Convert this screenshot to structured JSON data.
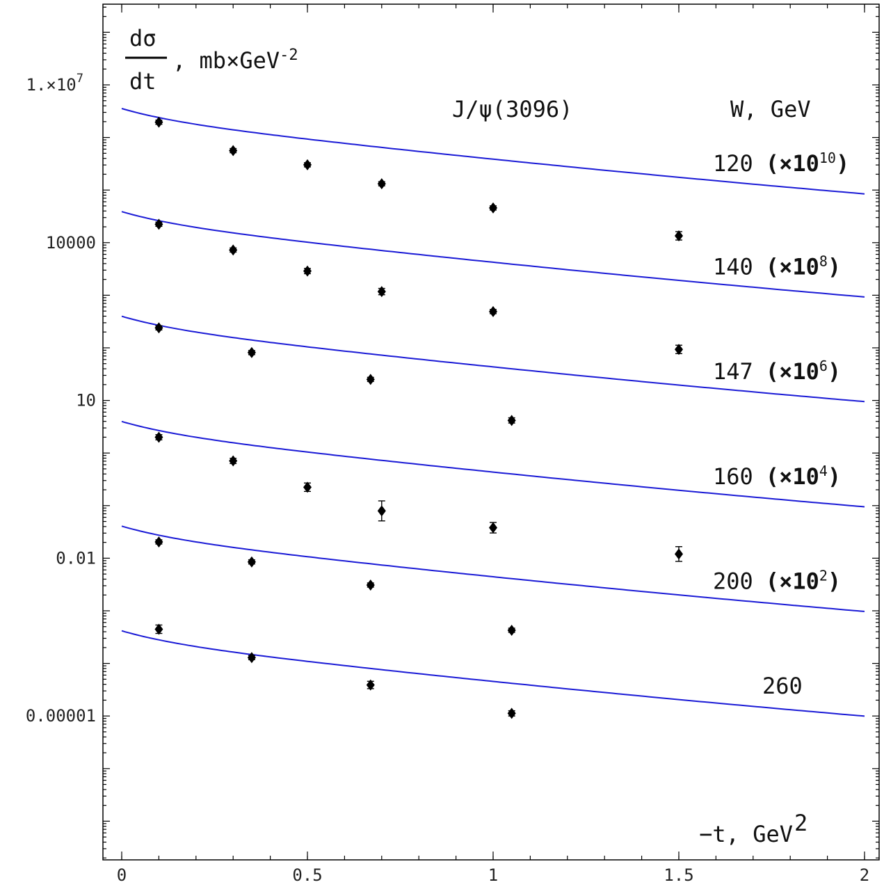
{
  "chart_data": {
    "type": "scatter",
    "title": "J/ψ(3096)",
    "ylabel": {
      "numerator": "dσ",
      "denominator": "dt",
      "units": "mb×GeV",
      "units_exp": "-2"
    },
    "xlabel": {
      "text": "−t, GeV",
      "exp": "2"
    },
    "legend_title": "W, GeV",
    "y_scale": "log",
    "xlim": [
      -0.05,
      2.05
    ],
    "ylim_log10": [
      -9.6,
      8.7
    ],
    "x_ticks": [
      {
        "v": 0,
        "label": "0"
      },
      {
        "v": 0.5,
        "label": "0.5"
      },
      {
        "v": 1,
        "label": "1"
      },
      {
        "v": 1.5,
        "label": "1.5"
      },
      {
        "v": 2,
        "label": "2"
      }
    ],
    "y_ticks": [
      {
        "log10": 7,
        "label": "1.×10",
        "exp": "7"
      },
      {
        "log10": 4,
        "label": "10000",
        "exp": ""
      },
      {
        "log10": 1,
        "label": "10",
        "exp": ""
      },
      {
        "log10": -2,
        "label": "0.01",
        "exp": ""
      },
      {
        "log10": -5,
        "label": "0.00001",
        "exp": ""
      }
    ],
    "series": [
      {
        "name": "120",
        "scale": "(×10",
        "scale_exp": "10",
        "scale_close": ")",
        "curve_log10": {
          "a": 6.55,
          "b": -0.84,
          "c": -0.73,
          "d": 0.06
        },
        "points": [
          {
            "x": 0.1,
            "log10_y": 6.29,
            "err_lo": 0.04,
            "err_hi": 0.04
          },
          {
            "x": 0.3,
            "log10_y": 5.75,
            "err_lo": 0.04,
            "err_hi": 0.04
          },
          {
            "x": 0.5,
            "log10_y": 5.48,
            "err_lo": 0.04,
            "err_hi": 0.04
          },
          {
            "x": 0.7,
            "log10_y": 5.12,
            "err_lo": 0.04,
            "err_hi": 0.04
          },
          {
            "x": 1.0,
            "log10_y": 4.66,
            "err_lo": 0.04,
            "err_hi": 0.04
          },
          {
            "x": 1.5,
            "log10_y": 4.13,
            "err_lo": 0.08,
            "err_hi": 0.08
          }
        ]
      },
      {
        "name": "140",
        "scale": "(×10",
        "scale_exp": "8",
        "scale_close": ")",
        "curve_log10": {
          "a": 4.59,
          "b": -0.84,
          "c": -0.73,
          "d": 0.06
        },
        "points": [
          {
            "x": 0.1,
            "log10_y": 4.35,
            "err_lo": 0.04,
            "err_hi": 0.04
          },
          {
            "x": 0.3,
            "log10_y": 3.86,
            "err_lo": 0.04,
            "err_hi": 0.04
          },
          {
            "x": 0.5,
            "log10_y": 3.46,
            "err_lo": 0.05,
            "err_hi": 0.05
          },
          {
            "x": 0.7,
            "log10_y": 3.07,
            "err_lo": 0.06,
            "err_hi": 0.06
          },
          {
            "x": 1.0,
            "log10_y": 2.69,
            "err_lo": 0.04,
            "err_hi": 0.04
          },
          {
            "x": 1.5,
            "log10_y": 1.97,
            "err_lo": 0.08,
            "err_hi": 0.08
          }
        ]
      },
      {
        "name": "147",
        "scale": "(×10",
        "scale_exp": "6",
        "scale_close": ")",
        "curve_log10": {
          "a": 2.6,
          "b": -0.84,
          "c": -0.73,
          "d": 0.06
        },
        "points": [
          {
            "x": 0.1,
            "log10_y": 2.38,
            "err_lo": 0.04,
            "err_hi": 0.04
          },
          {
            "x": 0.35,
            "log10_y": 1.91,
            "err_lo": 0.04,
            "err_hi": 0.04
          },
          {
            "x": 0.67,
            "log10_y": 1.4,
            "err_lo": 0.04,
            "err_hi": 0.04
          },
          {
            "x": 1.05,
            "log10_y": 0.62,
            "err_lo": 0.05,
            "err_hi": 0.05
          }
        ]
      },
      {
        "name": "160",
        "scale": "(×10",
        "scale_exp": "4",
        "scale_close": ")",
        "curve_log10": {
          "a": 0.6,
          "b": -0.84,
          "c": -0.73,
          "d": 0.06
        },
        "points": [
          {
            "x": 0.1,
            "log10_y": 0.3,
            "err_lo": 0.05,
            "err_hi": 0.05
          },
          {
            "x": 0.3,
            "log10_y": -0.15,
            "err_lo": 0.05,
            "err_hi": 0.05
          },
          {
            "x": 0.5,
            "log10_y": -0.65,
            "err_lo": 0.08,
            "err_hi": 0.08
          },
          {
            "x": 0.7,
            "log10_y": -1.1,
            "err_lo": 0.19,
            "err_hi": 0.19
          },
          {
            "x": 1.0,
            "log10_y": -1.42,
            "err_lo": 0.1,
            "err_hi": 0.1
          },
          {
            "x": 1.5,
            "log10_y": -1.92,
            "err_lo": 0.14,
            "err_hi": 0.14
          }
        ]
      },
      {
        "name": "200",
        "scale": "(×10",
        "scale_exp": "2",
        "scale_close": ")",
        "curve_log10": {
          "a": -1.39,
          "b": -0.84,
          "c": -0.73,
          "d": 0.06
        },
        "points": [
          {
            "x": 0.1,
            "log10_y": -1.69,
            "err_lo": 0.04,
            "err_hi": 0.04
          },
          {
            "x": 0.35,
            "log10_y": -2.07,
            "err_lo": 0.04,
            "err_hi": 0.04
          },
          {
            "x": 0.67,
            "log10_y": -2.51,
            "err_lo": 0.04,
            "err_hi": 0.04
          },
          {
            "x": 1.05,
            "log10_y": -3.37,
            "err_lo": 0.04,
            "err_hi": 0.04
          }
        ]
      },
      {
        "name": "260",
        "scale": "",
        "scale_exp": "",
        "scale_close": "",
        "curve_log10": {
          "a": -3.38,
          "b": -0.84,
          "c": -0.73,
          "d": 0.06
        },
        "points": [
          {
            "x": 0.1,
            "log10_y": -3.35,
            "err_lo": 0.08,
            "err_hi": 0.08
          },
          {
            "x": 0.35,
            "log10_y": -3.89,
            "err_lo": 0.04,
            "err_hi": 0.04
          },
          {
            "x": 0.67,
            "log10_y": -4.41,
            "err_lo": 0.07,
            "err_hi": 0.07
          },
          {
            "x": 1.05,
            "log10_y": -4.95,
            "err_lo": 0.05,
            "err_hi": 0.05
          }
        ]
      }
    ],
    "colors": {
      "curve": "#1a1ad6",
      "points": "#000000"
    }
  }
}
